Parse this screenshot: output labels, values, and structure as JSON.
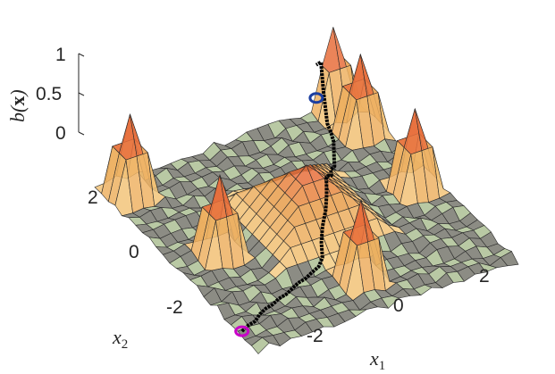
{
  "chart_data": {
    "type": "surface",
    "xlabel": "x",
    "xlabel_sub": "1",
    "ylabel": "x",
    "ylabel_sub": "2",
    "zlabel_func": "b(",
    "zlabel_arg": "x",
    "zlabel_close": ")",
    "x_ticks": [
      "-2",
      "0",
      "2"
    ],
    "y_ticks": [
      "-2",
      "0",
      "2"
    ],
    "z_ticks": [
      "0",
      "0.5",
      "1"
    ],
    "x_tick_values": [
      -2,
      0,
      2
    ],
    "y_tick_values": [
      -2,
      0,
      2
    ],
    "z_tick_values": [
      0,
      0.5,
      1
    ],
    "xlim": [
      -3,
      3
    ],
    "ylim": [
      -3,
      3
    ],
    "zlim": [
      0,
      1
    ],
    "grid": false,
    "surface": {
      "noise_level": 0.05,
      "peaks": [
        {
          "x": 0.0,
          "y": -2.0,
          "z": 1.0
        },
        {
          "x": -2.0,
          "y": 0.0,
          "z": 1.0
        },
        {
          "x": -2.5,
          "y": 2.5,
          "z": 1.0
        },
        {
          "x": 2.5,
          "y": 0.0,
          "z": 1.0
        },
        {
          "x": 2.5,
          "y": 2.0,
          "z": 1.0
        },
        {
          "x": 2.5,
          "y": 3.0,
          "z": 1.0
        },
        {
          "x": 0.0,
          "y": 0.0,
          "z": 0.75
        }
      ]
    },
    "trajectory": {
      "start": {
        "x": -3.0,
        "y": -2.4
      },
      "end": {
        "x": 2.3,
        "y": 3.3
      },
      "points": [
        [
          -3.0,
          -2.4
        ],
        [
          -2.8,
          -2.3
        ],
        [
          -2.6,
          -2.25
        ],
        [
          -2.4,
          -2.1
        ],
        [
          -2.2,
          -2.0
        ],
        [
          -2.0,
          -1.95
        ],
        [
          -1.8,
          -1.85
        ],
        [
          -1.6,
          -1.8
        ],
        [
          -1.4,
          -1.7
        ],
        [
          -1.2,
          -1.6
        ],
        [
          -1.0,
          -1.55
        ],
        [
          -0.8,
          -1.45
        ],
        [
          -0.6,
          -1.4
        ],
        [
          -0.45,
          -1.3
        ],
        [
          -0.35,
          -1.1
        ],
        [
          -0.2,
          -0.9
        ],
        [
          0.0,
          -0.7
        ],
        [
          0.15,
          -0.5
        ],
        [
          0.3,
          -0.25
        ],
        [
          0.5,
          0.0
        ],
        [
          0.7,
          0.2
        ],
        [
          0.85,
          0.45
        ],
        [
          1.0,
          0.7
        ],
        [
          1.2,
          0.95
        ],
        [
          1.4,
          1.2
        ],
        [
          1.55,
          1.45
        ],
        [
          1.7,
          1.7
        ],
        [
          1.85,
          1.95
        ],
        [
          1.95,
          2.2
        ],
        [
          2.05,
          2.5
        ],
        [
          2.15,
          2.8
        ],
        [
          2.25,
          3.05
        ],
        [
          2.3,
          3.3
        ]
      ]
    }
  },
  "colors": {
    "surface": "#8c8c84",
    "surface_light": "#b9c9a4",
    "edge": "#2a2a2a",
    "peak_low": "#f7d58e",
    "peak_mid": "#e79a47",
    "peak_high": "#e8282a",
    "trajectory": "#050505",
    "start_marker": "#c800c8",
    "end_marker": "#1b3ea0"
  }
}
